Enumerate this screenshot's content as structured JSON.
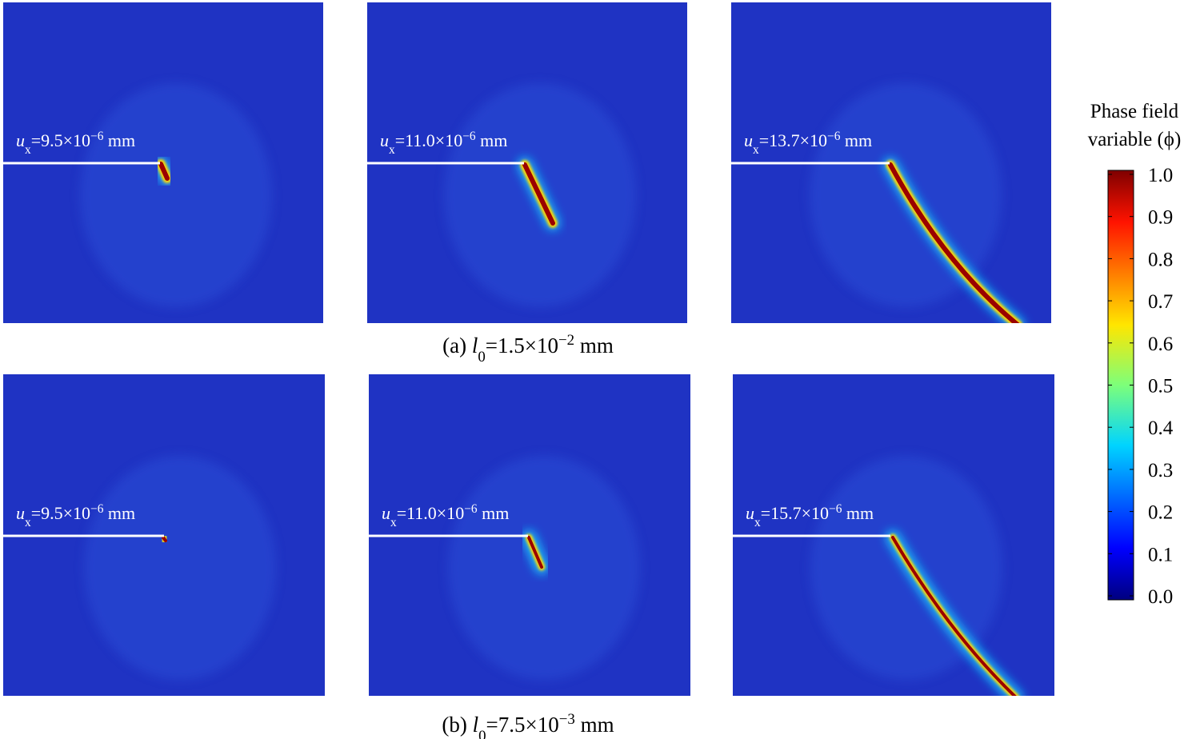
{
  "panels": [
    {
      "caption": {
        "prefix": "(a) ",
        "var": "l",
        "sub": "0",
        "mantissa": "=1.5×10",
        "exp": "−2",
        "unit": " mm"
      },
      "frames": [
        {
          "label": {
            "var": "u",
            "sub": "x",
            "mantissa": "=9.5×10",
            "exp": "−6",
            "unit": " mm"
          }
        },
        {
          "label": {
            "var": "u",
            "sub": "x",
            "mantissa": "=11.0×10",
            "exp": "−6",
            "unit": " mm"
          }
        },
        {
          "label": {
            "var": "u",
            "sub": "x",
            "mantissa": "=13.7×10",
            "exp": "−6",
            "unit": " mm"
          }
        }
      ]
    },
    {
      "caption": {
        "prefix": "(b) ",
        "var": "l",
        "sub": "0",
        "mantissa": "=7.5×10",
        "exp": "−3",
        "unit": " mm"
      },
      "frames": [
        {
          "label": {
            "var": "u",
            "sub": "x",
            "mantissa": "=9.5×10",
            "exp": "−6",
            "unit": " mm"
          }
        },
        {
          "label": {
            "var": "u",
            "sub": "x",
            "mantissa": "=11.0×10",
            "exp": "−6",
            "unit": " mm"
          }
        },
        {
          "label": {
            "var": "u",
            "sub": "x",
            "mantissa": "=15.7×10",
            "exp": "−6",
            "unit": " mm"
          }
        }
      ]
    }
  ],
  "colorbar": {
    "title": [
      "Phase field",
      "variable (ϕ)"
    ],
    "ticks": [
      {
        "value": 0,
        "label": "0.0"
      },
      {
        "value": 0.1,
        "label": "0.1"
      },
      {
        "value": 0.2,
        "label": "0.2"
      },
      {
        "value": 0.3,
        "label": "0.3"
      },
      {
        "value": 0.4,
        "label": "0.4"
      },
      {
        "value": 0.5,
        "label": "0.5"
      },
      {
        "value": 0.6,
        "label": "0.6"
      },
      {
        "value": 0.7,
        "label": "0.7"
      },
      {
        "value": 0.8,
        "label": "0.8"
      },
      {
        "value": 0.9,
        "label": "0.9"
      },
      {
        "value": 1,
        "label": "1.0"
      }
    ]
  }
}
